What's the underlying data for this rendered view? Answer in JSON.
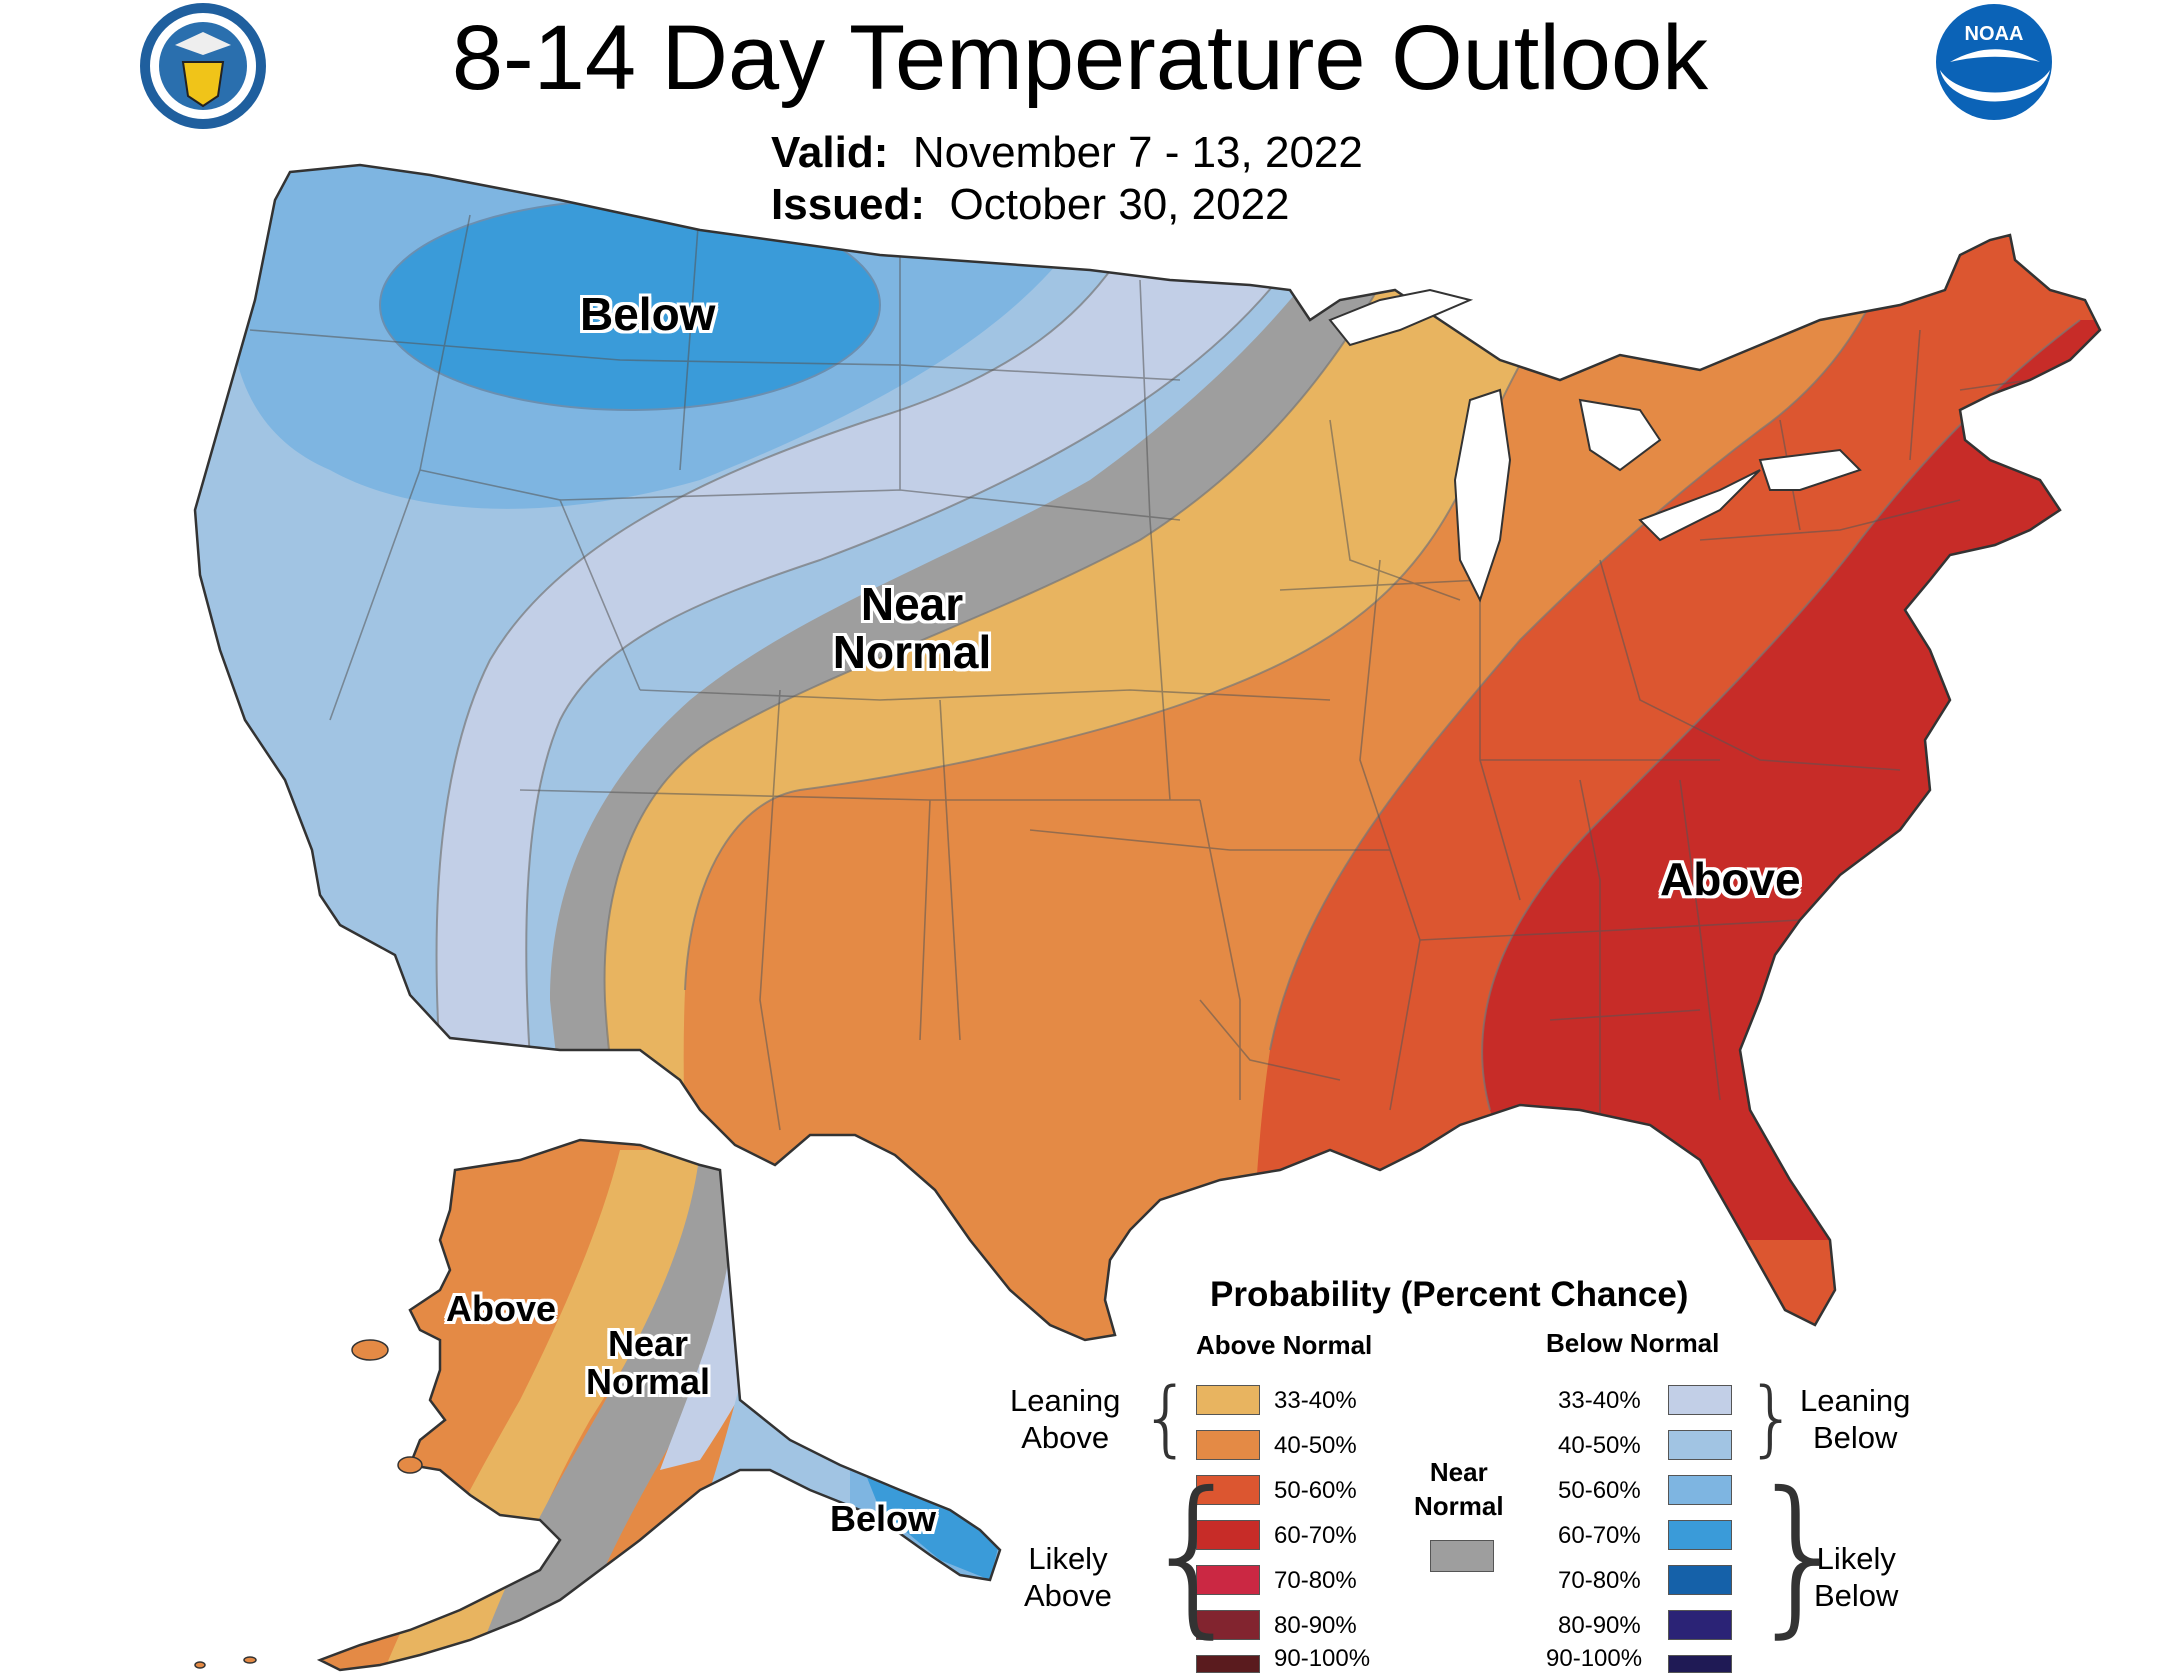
{
  "header": {
    "title": "8-14 Day Temperature Outlook",
    "valid_label": "Valid:",
    "valid_value": "November 7 - 13, 2022",
    "issued_label": "Issued:",
    "issued_value": "October 30, 2022"
  },
  "logos": {
    "left": "department-of-commerce-seal",
    "right": "noaa-logo"
  },
  "map_labels": {
    "conus_below": "Below",
    "conus_near_1": "Near",
    "conus_near_2": "Normal",
    "conus_above": "Above",
    "ak_above": "Above",
    "ak_near_1": "Near",
    "ak_near_2": "Normal",
    "ak_below": "Below"
  },
  "colors": {
    "above_33_40": "#E8B460",
    "above_40_50": "#E48A45",
    "above_50_60": "#DC5630",
    "above_60_70": "#C72C28",
    "above_70_80": "#CB2843",
    "above_80_90": "#82242F",
    "above_90_100": "#5A1B1E",
    "near_normal": "#9E9E9E",
    "below_33_40": "#C2CFE7",
    "below_40_50": "#A1C4E3",
    "below_50_60": "#7EB5E1",
    "below_60_70": "#3A9BD9",
    "below_70_80": "#1561A9",
    "below_80_90": "#2B2376",
    "below_90_100": "#1F1A55"
  },
  "legend": {
    "title": "Probability (Percent Chance)",
    "above_header": "Above Normal",
    "below_header": "Below Normal",
    "near_normal_1": "Near",
    "near_normal_2": "Normal",
    "leaning_above_1": "Leaning",
    "leaning_above_2": "Above",
    "likely_above_1": "Likely",
    "likely_above_2": "Above",
    "leaning_below_1": "Leaning",
    "leaning_below_2": "Below",
    "likely_below_1": "Likely",
    "likely_below_2": "Below",
    "above_ranges": [
      "33-40%",
      "40-50%",
      "50-60%",
      "60-70%",
      "70-80%",
      "80-90%",
      "90-100%"
    ],
    "below_ranges": [
      "33-40%",
      "40-50%",
      "50-60%",
      "60-70%",
      "70-80%",
      "80-90%",
      "90-100%"
    ]
  }
}
